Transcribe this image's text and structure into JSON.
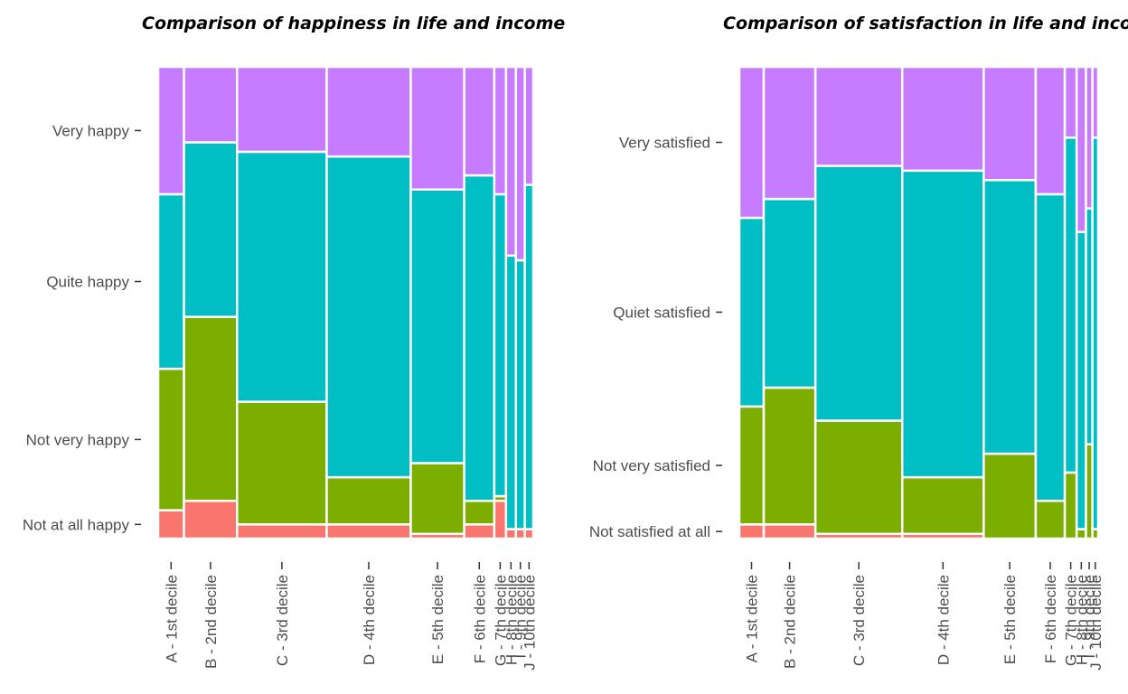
{
  "chart_data": [
    {
      "type": "mosaic",
      "title": "Comparison of happiness in life and income",
      "categories": [
        "A - 1st decile",
        "B - 2nd decile",
        "C - 3rd decile",
        "D - 4th decile",
        "E - 5th decile",
        "F - 6th decile",
        "G - 7th decile",
        "H - 8th decile",
        "I - 9th decile",
        "J - 10th decile"
      ],
      "column_share": [
        0.055,
        0.113,
        0.191,
        0.179,
        0.114,
        0.064,
        0.025,
        0.021,
        0.019,
        0.018
      ],
      "levels": [
        "Not at all happy",
        "Not very happy",
        "Quite happy",
        "Very happy"
      ],
      "series": [
        {
          "name": "Not at all happy",
          "color": "#F8766D",
          "values": [
            0.06,
            0.08,
            0.03,
            0.03,
            0.01,
            0.03,
            0.08,
            0.02,
            0.02,
            0.02
          ]
        },
        {
          "name": "Not very happy",
          "color": "#7CAE00",
          "values": [
            0.3,
            0.39,
            0.26,
            0.1,
            0.15,
            0.05,
            0.01,
            0.0,
            0.0,
            0.0
          ]
        },
        {
          "name": "Quite happy",
          "color": "#00BFC4",
          "values": [
            0.37,
            0.37,
            0.53,
            0.68,
            0.58,
            0.69,
            0.64,
            0.58,
            0.57,
            0.73
          ]
        },
        {
          "name": "Very happy",
          "color": "#C77CFF",
          "values": [
            0.27,
            0.16,
            0.18,
            0.19,
            0.26,
            0.23,
            0.27,
            0.4,
            0.41,
            0.25
          ]
        }
      ],
      "ylim": [
        0,
        1
      ],
      "legend": "none"
    },
    {
      "type": "mosaic",
      "title": "Comparison of satisfaction in life and income",
      "categories": [
        "A - 1st decile",
        "B - 2nd decile",
        "C - 3rd decile",
        "D - 4th decile",
        "E - 5th decile",
        "F - 6th decile",
        "G - 7th decile",
        "H - 8th decile",
        "I - 9th decile",
        "J - 10th decile"
      ],
      "column_share": [
        0.068,
        0.144,
        0.242,
        0.227,
        0.145,
        0.081,
        0.033,
        0.026,
        0.018,
        0.016
      ],
      "levels": [
        "Not satisfied at all",
        "Not very satisfied",
        "Quiet satisfied",
        "Very satisfied"
      ],
      "series": [
        {
          "name": "Not satisfied at all",
          "color": "#F8766D",
          "values": [
            0.03,
            0.03,
            0.01,
            0.01,
            0.0,
            0.0,
            0.0,
            0.0,
            0.0,
            0.0
          ]
        },
        {
          "name": "Not very satisfied",
          "color": "#7CAE00",
          "values": [
            0.25,
            0.29,
            0.24,
            0.12,
            0.18,
            0.08,
            0.14,
            0.02,
            0.2,
            0.02
          ]
        },
        {
          "name": "Quiet satisfied",
          "color": "#00BFC4",
          "values": [
            0.4,
            0.4,
            0.54,
            0.65,
            0.58,
            0.65,
            0.71,
            0.63,
            0.5,
            0.83
          ]
        },
        {
          "name": "Very satisfied",
          "color": "#C77CFF",
          "values": [
            0.32,
            0.28,
            0.21,
            0.22,
            0.24,
            0.27,
            0.15,
            0.35,
            0.3,
            0.15
          ]
        }
      ],
      "ylim": [
        0,
        1
      ],
      "legend": "none"
    }
  ]
}
